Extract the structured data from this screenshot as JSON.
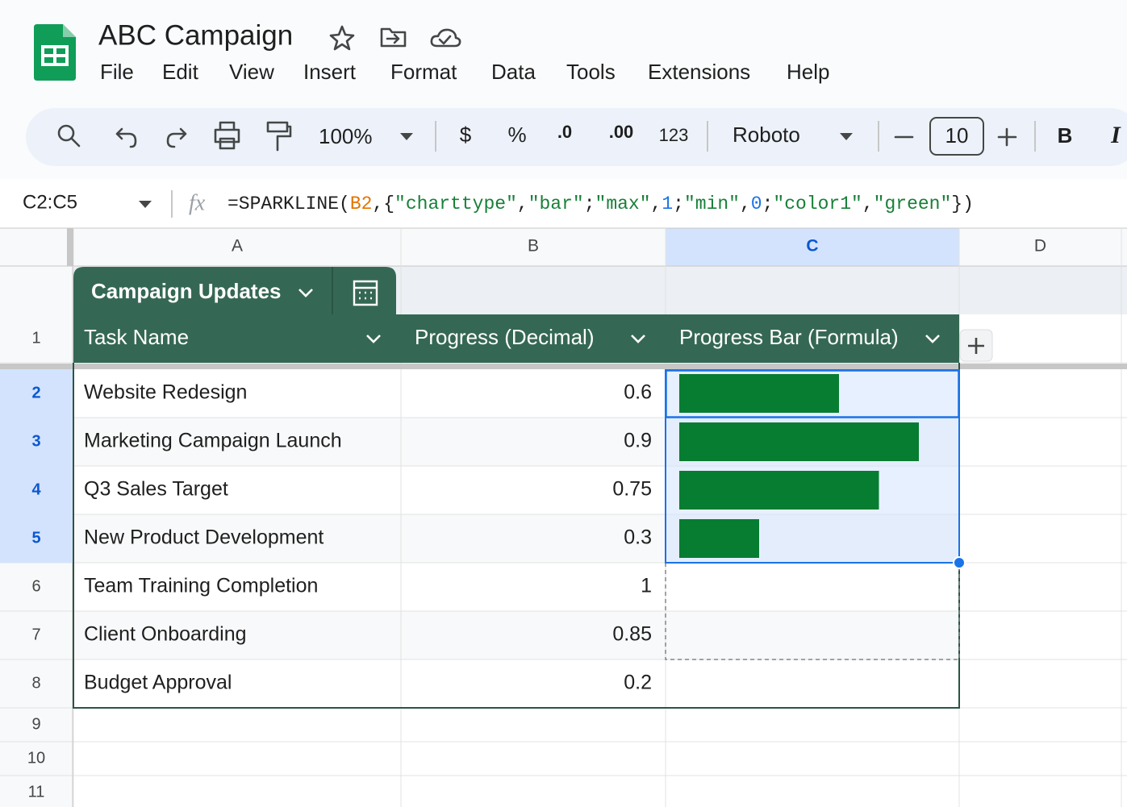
{
  "app": {
    "title": "ABC Campaign",
    "menu": [
      "File",
      "Edit",
      "View",
      "Insert",
      "Format",
      "Data",
      "Tools",
      "Extensions",
      "Help"
    ],
    "toolbar": {
      "zoom": "100%",
      "currency": "$",
      "percent": "%",
      "decrease_decimal": ".0",
      "increase_decimal": ".00",
      "number_format": "123",
      "font": "Roboto",
      "font_size": 10,
      "bold": "B",
      "italic": "I"
    },
    "name_box": "C2:C5",
    "formula": [
      "=SPARKLINE(",
      "B2",
      ",{",
      "\"charttype\"",
      ",",
      "\"bar\"",
      ";",
      "\"max\"",
      ",",
      "1",
      ";",
      "\"min\"",
      ",",
      "0",
      ";",
      "\"color1\"",
      ",",
      "\"green\"",
      "})"
    ]
  },
  "columns": [
    "A",
    "B",
    "C",
    "D"
  ],
  "row_numbers": [
    1,
    2,
    3,
    4,
    5,
    6,
    7,
    8,
    9,
    10,
    11
  ],
  "table": {
    "name": "Campaign Updates",
    "headers": [
      "Task Name",
      "Progress (Decimal)",
      "Progress Bar (Formula)"
    ],
    "rows": [
      [
        "Website Redesign",
        0.6
      ],
      [
        "Marketing Campaign Launch",
        0.9
      ],
      [
        "Q3 Sales Target",
        0.75
      ],
      [
        "New Product Development",
        0.3
      ],
      [
        "Team Training Completion",
        1
      ],
      [
        "Client Onboarding",
        0.85
      ],
      [
        "Budget Approval",
        0.2
      ]
    ]
  }
}
